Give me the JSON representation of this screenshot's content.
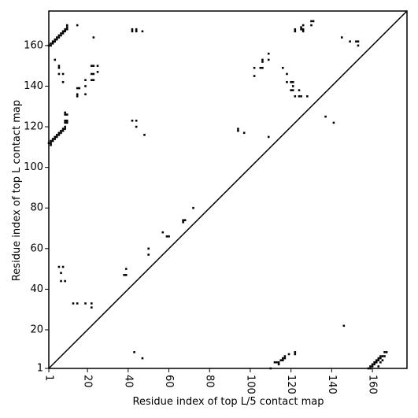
{
  "chart_data": {
    "type": "heatmap",
    "title": "",
    "xlabel": "Residue index of top L/5 contact map",
    "ylabel": "Residue index of top L contact map",
    "xlim": [
      1,
      177
    ],
    "ylim": [
      1,
      177
    ],
    "xticks": [
      1,
      20,
      40,
      60,
      80,
      100,
      120,
      140,
      160
    ],
    "yticks": [
      1,
      20,
      40,
      60,
      80,
      100,
      120,
      140,
      160
    ],
    "grid": false,
    "colors": {
      "contact": "#000000",
      "background": "#ffffff",
      "diagonal": "#000000"
    },
    "upper_contacts": [
      [
        1,
        160
      ],
      [
        2,
        160
      ],
      [
        2,
        161
      ],
      [
        3,
        161
      ],
      [
        3,
        162
      ],
      [
        4,
        162
      ],
      [
        4,
        163
      ],
      [
        5,
        163
      ],
      [
        5,
        164
      ],
      [
        6,
        164
      ],
      [
        6,
        165
      ],
      [
        7,
        165
      ],
      [
        7,
        166
      ],
      [
        8,
        166
      ],
      [
        8,
        167
      ],
      [
        9,
        167
      ],
      [
        9,
        168
      ],
      [
        10,
        168
      ],
      [
        10,
        169
      ],
      [
        10,
        170
      ],
      [
        1,
        112
      ],
      [
        2,
        112
      ],
      [
        2,
        113
      ],
      [
        3,
        113
      ],
      [
        3,
        114
      ],
      [
        4,
        114
      ],
      [
        4,
        115
      ],
      [
        5,
        115
      ],
      [
        5,
        116
      ],
      [
        6,
        116
      ],
      [
        6,
        117
      ],
      [
        7,
        117
      ],
      [
        7,
        118
      ],
      [
        8,
        118
      ],
      [
        8,
        119
      ],
      [
        9,
        119
      ],
      [
        9,
        120
      ],
      [
        9,
        122
      ],
      [
        10,
        122
      ],
      [
        9,
        123
      ],
      [
        10,
        123
      ],
      [
        9,
        126
      ],
      [
        10,
        126
      ],
      [
        9,
        127
      ],
      [
        2,
        111
      ],
      [
        4,
        153
      ],
      [
        6,
        150
      ],
      [
        6,
        149
      ],
      [
        6,
        146
      ],
      [
        8,
        146
      ],
      [
        8,
        142
      ],
      [
        8,
        51
      ],
      [
        6,
        51
      ],
      [
        7,
        48
      ],
      [
        7,
        44
      ],
      [
        9,
        44
      ],
      [
        13,
        33
      ],
      [
        15,
        33
      ],
      [
        19,
        33
      ],
      [
        22,
        33
      ],
      [
        22,
        31
      ],
      [
        15,
        135
      ],
      [
        15,
        136
      ],
      [
        15,
        139
      ],
      [
        16,
        139
      ],
      [
        19,
        136
      ],
      [
        19,
        140
      ],
      [
        19,
        143
      ],
      [
        22,
        143
      ],
      [
        23,
        143
      ],
      [
        22,
        146
      ],
      [
        23,
        146
      ],
      [
        25,
        147
      ],
      [
        22,
        150
      ],
      [
        23,
        150
      ],
      [
        25,
        150
      ],
      [
        23,
        164
      ],
      [
        15,
        170
      ],
      [
        38,
        47
      ],
      [
        39,
        47
      ],
      [
        39,
        50
      ],
      [
        42,
        167
      ],
      [
        42,
        168
      ],
      [
        44,
        167
      ],
      [
        44,
        168
      ],
      [
        47,
        167
      ],
      [
        42,
        123
      ],
      [
        44,
        123
      ],
      [
        44,
        120
      ],
      [
        48,
        116
      ],
      [
        50,
        60
      ],
      [
        50,
        57
      ],
      [
        57,
        68
      ],
      [
        59,
        66
      ],
      [
        60,
        66
      ],
      [
        67,
        73
      ],
      [
        67,
        74
      ],
      [
        68,
        74
      ],
      [
        72,
        80
      ],
      [
        94,
        118
      ],
      [
        94,
        119
      ],
      [
        97,
        117
      ],
      [
        102,
        145
      ],
      [
        102,
        149
      ],
      [
        105,
        149
      ],
      [
        106,
        149
      ],
      [
        106,
        152
      ],
      [
        106,
        153
      ],
      [
        109,
        153
      ],
      [
        109,
        156
      ],
      [
        109,
        115
      ],
      [
        116,
        149
      ],
      [
        118,
        146
      ],
      [
        118,
        142
      ],
      [
        120,
        142
      ],
      [
        121,
        142
      ],
      [
        120,
        138
      ],
      [
        121,
        138
      ],
      [
        121,
        140
      ],
      [
        122,
        135
      ],
      [
        122,
        167
      ],
      [
        122,
        168
      ],
      [
        124,
        138
      ],
      [
        124,
        135
      ],
      [
        125,
        135
      ],
      [
        125,
        168
      ],
      [
        125,
        169
      ],
      [
        126,
        168
      ],
      [
        126,
        167
      ],
      [
        126,
        170
      ],
      [
        128,
        135
      ],
      [
        130,
        170
      ],
      [
        130,
        172
      ],
      [
        131,
        172
      ],
      [
        137,
        125
      ],
      [
        141,
        122
      ],
      [
        145,
        164
      ],
      [
        149,
        162
      ],
      [
        152,
        162
      ],
      [
        153,
        162
      ],
      [
        153,
        160
      ]
    ],
    "lower_contacts": [
      [
        43,
        9
      ],
      [
        47,
        6
      ],
      [
        146,
        22
      ],
      [
        110,
        1
      ],
      [
        112,
        4
      ],
      [
        113,
        4
      ],
      [
        114,
        3
      ],
      [
        114,
        4
      ],
      [
        115,
        5
      ],
      [
        116,
        5
      ],
      [
        116,
        6
      ],
      [
        117,
        6
      ],
      [
        117,
        7
      ],
      [
        119,
        8
      ],
      [
        122,
        8
      ],
      [
        122,
        9
      ],
      [
        158,
        1
      ],
      [
        159,
        1
      ],
      [
        159,
        2
      ],
      [
        160,
        2
      ],
      [
        160,
        3
      ],
      [
        161,
        3
      ],
      [
        161,
        4
      ],
      [
        162,
        4
      ],
      [
        162,
        5
      ],
      [
        163,
        5
      ],
      [
        163,
        2
      ],
      [
        163,
        6
      ],
      [
        164,
        6
      ],
      [
        164,
        4
      ],
      [
        164,
        7
      ],
      [
        165,
        7
      ],
      [
        165,
        5
      ],
      [
        166,
        7
      ],
      [
        166,
        9
      ],
      [
        167,
        9
      ]
    ]
  }
}
